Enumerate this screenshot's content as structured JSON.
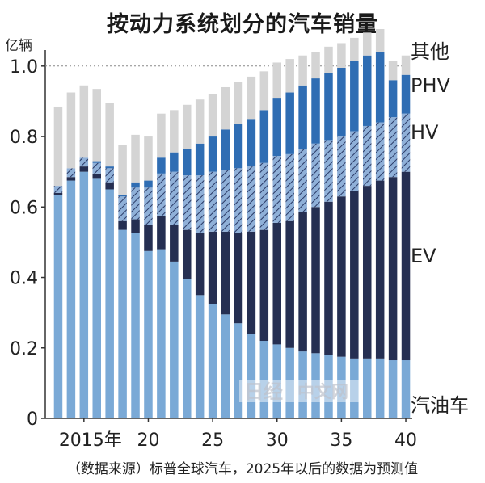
{
  "chart_data": {
    "type": "bar",
    "stacked": true,
    "title": "按动力系统划分的汽车销量",
    "ylabel": "亿辆",
    "ylim": [
      0,
      1.05
    ],
    "yticks": [
      0,
      0.2,
      0.4,
      0.6,
      0.8,
      1.0
    ],
    "ytick_labels": [
      "0",
      "0.2",
      "0.4",
      "0.6",
      "0.8",
      "1.0"
    ],
    "x": [
      2013,
      2014,
      2015,
      2016,
      2017,
      2018,
      2019,
      2020,
      2021,
      2022,
      2023,
      2024,
      2025,
      2026,
      2027,
      2028,
      2029,
      2030,
      2031,
      2032,
      2033,
      2034,
      2035,
      2036,
      2037,
      2038,
      2039,
      2040
    ],
    "xticks": [
      2015,
      2020,
      2025,
      2030,
      2035,
      2040
    ],
    "xtick_labels": [
      "2015年",
      "20",
      "25",
      "30",
      "35",
      "40"
    ],
    "series": [
      {
        "name": "汽油车",
        "color": "#7aa9d6",
        "pattern": "solid",
        "values": [
          0.635,
          0.675,
          0.7,
          0.68,
          0.65,
          0.535,
          0.525,
          0.475,
          0.48,
          0.445,
          0.395,
          0.35,
          0.325,
          0.295,
          0.27,
          0.24,
          0.22,
          0.21,
          0.2,
          0.19,
          0.185,
          0.18,
          0.175,
          0.17,
          0.17,
          0.17,
          0.165,
          0.165
        ]
      },
      {
        "name": "EV",
        "color": "#252f52",
        "pattern": "solid",
        "values": [
          0.005,
          0.01,
          0.015,
          0.015,
          0.02,
          0.025,
          0.04,
          0.075,
          0.095,
          0.105,
          0.14,
          0.175,
          0.205,
          0.235,
          0.255,
          0.29,
          0.315,
          0.345,
          0.36,
          0.395,
          0.415,
          0.435,
          0.455,
          0.475,
          0.49,
          0.505,
          0.52,
          0.535
        ]
      },
      {
        "name": "HV",
        "color": "#8fb0d8",
        "pattern": "hatch",
        "values": [
          0.02,
          0.025,
          0.025,
          0.03,
          0.04,
          0.07,
          0.09,
          0.105,
          0.12,
          0.15,
          0.155,
          0.165,
          0.17,
          0.175,
          0.185,
          0.185,
          0.19,
          0.19,
          0.19,
          0.18,
          0.18,
          0.175,
          0.17,
          0.17,
          0.17,
          0.165,
          0.17,
          0.165
        ]
      },
      {
        "name": "PHV",
        "color": "#2f6db3",
        "pattern": "solid",
        "values": [
          0.0,
          0.0,
          0.0,
          0.005,
          0.005,
          0.005,
          0.015,
          0.02,
          0.045,
          0.055,
          0.075,
          0.09,
          0.1,
          0.115,
          0.125,
          0.135,
          0.15,
          0.165,
          0.175,
          0.18,
          0.185,
          0.19,
          0.195,
          0.2,
          0.2,
          0.2,
          0.105,
          0.11
        ]
      },
      {
        "name": "其他",
        "color": "#d4d4d4",
        "pattern": "solid",
        "values": [
          0.225,
          0.215,
          0.205,
          0.205,
          0.18,
          0.14,
          0.135,
          0.125,
          0.125,
          0.12,
          0.125,
          0.125,
          0.12,
          0.12,
          0.12,
          0.12,
          0.11,
          0.1,
          0.095,
          0.085,
          0.075,
          0.075,
          0.07,
          0.065,
          0.065,
          0.065,
          0.055,
          0.055
        ]
      }
    ],
    "grid": false,
    "legend": "direct labels on right",
    "source": "（数据来源）标普全球汽车，2025年以后的数据为预测值"
  },
  "watermark": {
    "logo": "日经",
    "text": "中文网"
  }
}
